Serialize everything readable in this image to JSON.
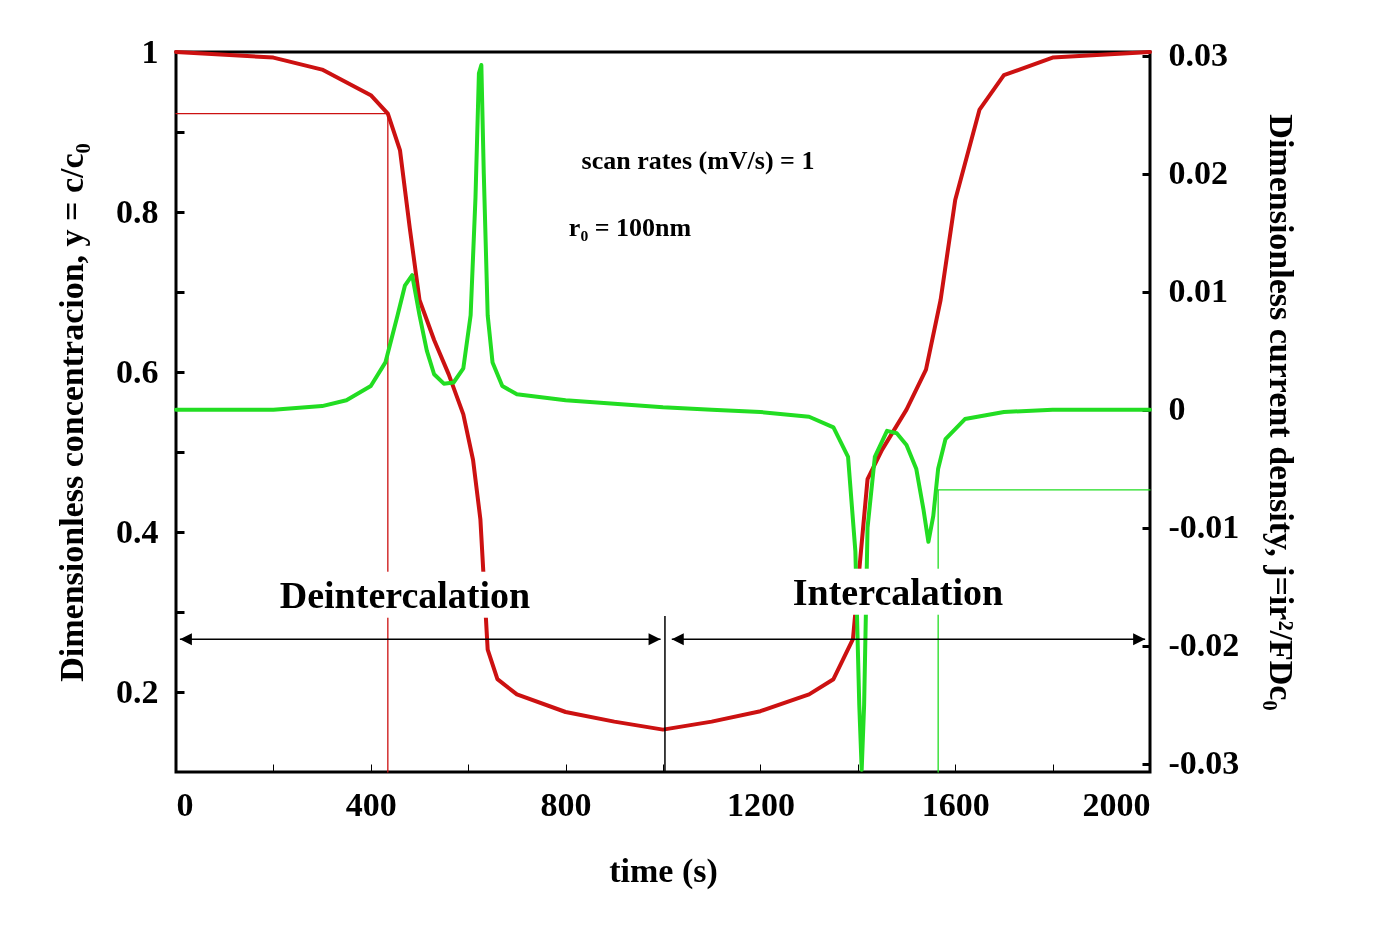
{
  "chart_data": {
    "type": "line",
    "xlabel": "time (s)",
    "ylabel": "Dimensionless concentracion, y = c/c₀",
    "y2label": "Dimensionless current density, j=ir²/FDc₀",
    "xlim": [
      0,
      2000
    ],
    "xticks": [
      0,
      {
        "value": 200,
        "label": null
      },
      400,
      {
        "value": 600,
        "label": null
      },
      800,
      {
        "value": 1000,
        "label": null
      },
      1200,
      {
        "value": 1400,
        "label": null
      },
      1600,
      {
        "value": 1800,
        "label": null
      },
      2000
    ],
    "ylim": [
      0.1,
      1
    ],
    "yticks": [
      0.2,
      {
        "value": 0.3,
        "label": null
      },
      0.4,
      {
        "value": 0.5,
        "label": null
      },
      0.6,
      {
        "value": 0.7,
        "label": null
      },
      0.8,
      {
        "value": 0.9,
        "label": null
      },
      1
    ],
    "y2lim": [
      -0.0307,
      0.0303
    ],
    "y2ticks": [
      -0.03,
      -0.02,
      -0.01,
      0,
      0.01,
      0.02,
      0.03
    ],
    "grid": false,
    "marker": "none",
    "line_style": "solid",
    "series": [
      {
        "color": "#cc1111",
        "x": [
          0,
          200,
          300,
          400,
          435,
          460,
          480,
          500,
          530,
          560,
          590,
          610,
          625,
          640,
          660,
          700,
          800,
          900,
          1000,
          1100,
          1200,
          1300,
          1350,
          1390,
          1405,
          1420,
          1450,
          1500,
          1540,
          1570,
          1600,
          1650,
          1700,
          1800,
          2000
        ],
        "values": [
          1.0,
          0.993,
          0.978,
          0.946,
          0.923,
          0.877,
          0.78,
          0.69,
          0.64,
          0.597,
          0.547,
          0.49,
          0.416,
          0.253,
          0.216,
          0.197,
          0.175,
          0.163,
          0.153,
          0.163,
          0.176,
          0.197,
          0.216,
          0.266,
          0.366,
          0.466,
          0.503,
          0.553,
          0.603,
          0.69,
          0.815,
          0.928,
          0.971,
          0.993,
          1.0
        ]
      },
      {
        "color": "#22dd22",
        "axis": "y2",
        "x": [
          0,
          200,
          300,
          350,
          400,
          430,
          455,
          470,
          485,
          500,
          515,
          530,
          550,
          570,
          590,
          605,
          615,
          622,
          627,
          632,
          640,
          650,
          670,
          700,
          800,
          900,
          1000,
          1100,
          1200,
          1300,
          1350,
          1380,
          1395,
          1403,
          1408,
          1413,
          1420,
          1435,
          1460,
          1480,
          1500,
          1520,
          1535,
          1545,
          1555,
          1565,
          1580,
          1620,
          1700,
          1800,
          2000
        ],
        "values": [
          0,
          0,
          0.0003,
          0.0008,
          0.002,
          0.004,
          0.008,
          0.0105,
          0.0114,
          0.008,
          0.005,
          0.003,
          0.0022,
          0.0023,
          0.0035,
          0.008,
          0.018,
          0.0285,
          0.0292,
          0.02,
          0.008,
          0.004,
          0.002,
          0.0013,
          0.0008,
          0.0005,
          0.0002,
          0,
          -0.0002,
          -0.0006,
          -0.0015,
          -0.004,
          -0.012,
          -0.025,
          -0.0305,
          -0.025,
          -0.01,
          -0.004,
          -0.0018,
          -0.002,
          -0.003,
          -0.005,
          -0.0085,
          -0.0112,
          -0.009,
          -0.005,
          -0.0025,
          -0.0008,
          -0.0002,
          0,
          0
        ]
      },
      {
        "color": "#cc1111",
        "x": [
          0,
          435,
          435
        ],
        "values": [
          0.923,
          0.923,
          0.1
        ]
      },
      {
        "color": "#22dd22",
        "axis": "y2",
        "x": [
          1565,
          1565,
          2000
        ],
        "values": [
          -0.0307,
          -0.0068,
          -0.0068
        ]
      }
    ],
    "annotations": [
      "scan rates (mV/s) = 1",
      "r₀ = 100nm",
      "Deintercalation",
      "Intercalation"
    ]
  }
}
